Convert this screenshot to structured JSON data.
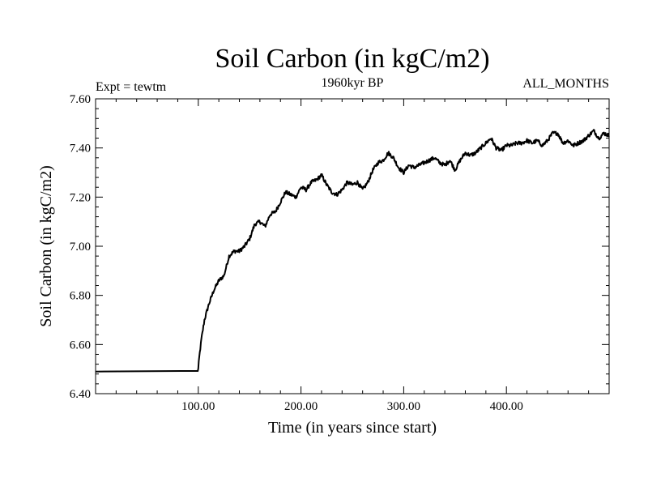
{
  "chart_data": {
    "type": "line",
    "title": "Soil Carbon (in kgC/m2)",
    "subtitle": "1960kyr BP",
    "experiment_label": "Expt = tewtm",
    "months_label": "ALL_MONTHS",
    "xlabel": "Time (in years since start)",
    "ylabel": "Soil Carbon (in kgC/m2)",
    "xlim": [
      0,
      500
    ],
    "ylim": [
      6.4,
      7.6
    ],
    "x_ticks": [
      100,
      200,
      300,
      400
    ],
    "x_tick_labels": [
      "100.00",
      "200.00",
      "300.00",
      "400.00"
    ],
    "y_ticks": [
      6.4,
      6.6,
      6.8,
      7.0,
      7.2,
      7.4,
      7.6
    ],
    "y_tick_labels": [
      "6.40",
      "6.60",
      "6.80",
      "7.00",
      "7.20",
      "7.40",
      "7.60"
    ],
    "grid": false,
    "series": [
      {
        "name": "Soil Carbon",
        "x": [
          0,
          99,
          100,
          101,
          103,
          106,
          110,
          115,
          120,
          125,
          130,
          135,
          140,
          145,
          150,
          155,
          160,
          165,
          170,
          175,
          180,
          185,
          190,
          195,
          200,
          205,
          210,
          215,
          220,
          225,
          230,
          235,
          240,
          245,
          250,
          255,
          260,
          265,
          270,
          275,
          280,
          285,
          290,
          295,
          300,
          305,
          310,
          315,
          320,
          325,
          330,
          335,
          340,
          345,
          350,
          355,
          360,
          365,
          370,
          375,
          380,
          385,
          390,
          395,
          400,
          405,
          410,
          415,
          420,
          425,
          430,
          435,
          440,
          445,
          450,
          455,
          460,
          465,
          470,
          475,
          480,
          485,
          490,
          495,
          500
        ],
        "values": [
          6.49,
          6.49,
          6.5,
          6.55,
          6.62,
          6.7,
          6.76,
          6.82,
          6.86,
          6.88,
          6.96,
          6.98,
          6.98,
          7.0,
          7.03,
          7.09,
          7.1,
          7.08,
          7.13,
          7.14,
          7.18,
          7.22,
          7.21,
          7.2,
          7.24,
          7.23,
          7.26,
          7.27,
          7.29,
          7.25,
          7.22,
          7.21,
          7.23,
          7.26,
          7.25,
          7.26,
          7.23,
          7.26,
          7.31,
          7.34,
          7.35,
          7.38,
          7.36,
          7.32,
          7.3,
          7.33,
          7.32,
          7.33,
          7.34,
          7.35,
          7.36,
          7.34,
          7.33,
          7.35,
          7.31,
          7.35,
          7.38,
          7.37,
          7.38,
          7.4,
          7.42,
          7.44,
          7.4,
          7.39,
          7.41,
          7.41,
          7.42,
          7.42,
          7.43,
          7.42,
          7.43,
          7.41,
          7.43,
          7.46,
          7.46,
          7.42,
          7.43,
          7.41,
          7.42,
          7.43,
          7.45,
          7.47,
          7.44,
          7.46,
          7.45
        ]
      }
    ]
  }
}
